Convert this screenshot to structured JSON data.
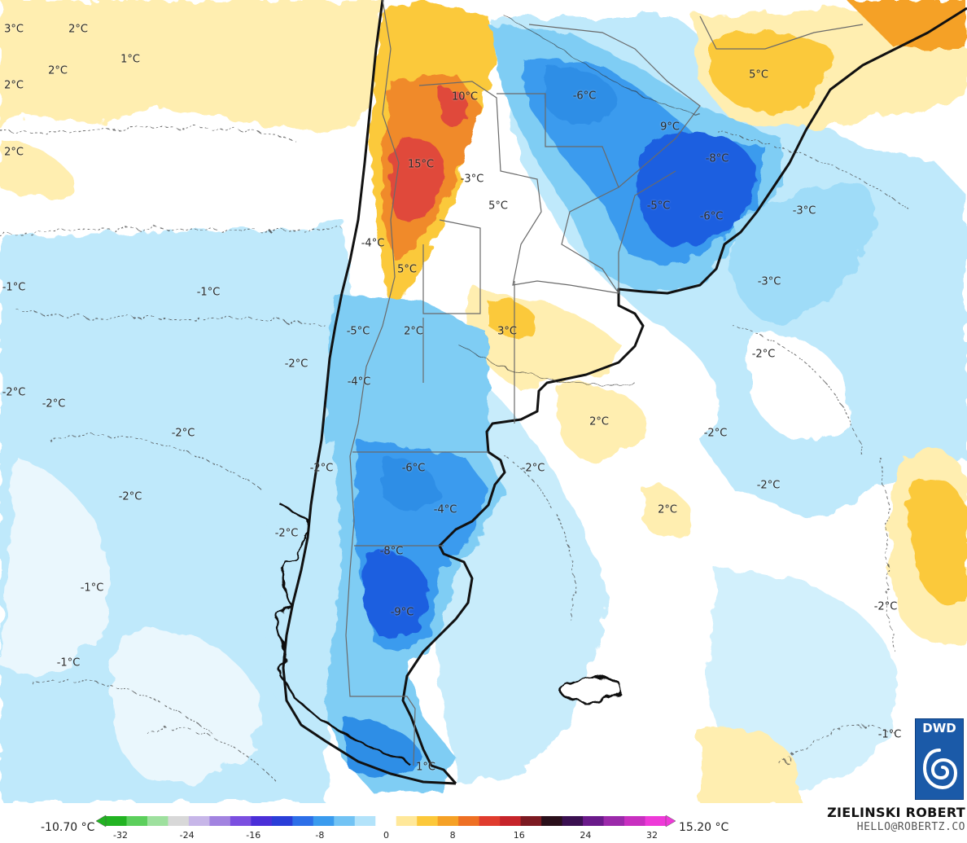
{
  "map": {
    "labels": [
      "3°C",
      "2°C",
      "2°C",
      "1°C",
      "2°C",
      "2°C",
      "10°C",
      "15°C",
      "-3°C",
      "5°C",
      "-6°C",
      "9°C",
      "5°C",
      "-8°C",
      "-5°C",
      "-6°C",
      "-3°C",
      "-3°C",
      "-4°C",
      "5°C",
      "-1°C",
      "-1°C",
      "-5°C",
      "2°C",
      "3°C",
      "-2°C",
      "-4°C",
      "-2°C",
      "-2°C",
      "-2°C",
      "-2°C",
      "2°C",
      "-2°C",
      "-6°C",
      "-2°C",
      "-2°C",
      "-4°C",
      "2°C",
      "-2°C",
      "-2°C",
      "-8°C",
      "-2°C",
      "-1°C",
      "-9°C",
      "-2°C",
      "-1°C",
      "-1°C",
      "1°C"
    ],
    "colors": {
      "ocean_base": "#ffffff",
      "cold_light": "#bfe9fb",
      "cold_mid": "#7fcdf4",
      "cold_deep": "#2f8ee6",
      "cold_deeper": "#1d5ee0",
      "warm_light": "#ffeeb0",
      "warm_mid": "#fbc93a",
      "warm_orange": "#f08a2a",
      "warm_red": "#e04a3a",
      "coast": "#111111",
      "border": "#6a6a6a"
    }
  },
  "colorbar": {
    "min_label": "-10.70 °C",
    "max_label": "15.20 °C",
    "ticks": [
      "-32",
      "-24",
      "-16",
      "-8",
      "0",
      "8",
      "16",
      "24",
      "32"
    ],
    "colors": [
      "#22b322",
      "#5ccf5c",
      "#9ee09e",
      "#d8d8d8",
      "#c7b6e8",
      "#a283e0",
      "#7b4fe0",
      "#4b2fd8",
      "#2a3ed8",
      "#2d6fe8",
      "#3a9bee",
      "#72c3f4",
      "#b3e3fa",
      "#ffffff",
      "#ffe89a",
      "#fcc83a",
      "#f5a126",
      "#ee7024",
      "#e03c2e",
      "#c6242a",
      "#7c1a22",
      "#2a0f1a",
      "#3a1050",
      "#6a1a8a",
      "#9b2aaa",
      "#c830c0",
      "#ee3ad8"
    ]
  },
  "credit": {
    "name": "ZIELINSKI ROBERT",
    "contact": "HELLO@ROBERTZ.CO"
  },
  "logo": {
    "text": "DWD"
  }
}
